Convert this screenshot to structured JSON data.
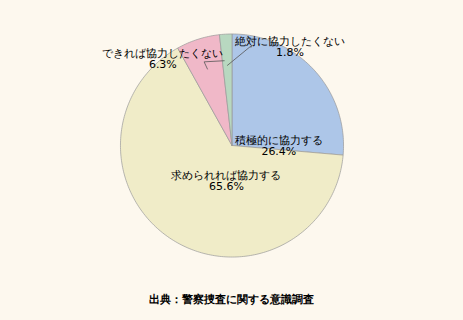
{
  "chart_data": {
    "type": "pie",
    "categories": [
      "積極的に協力する",
      "求められれば協力する",
      "できれば協力したくない",
      "絶対に協力したくない"
    ],
    "values": [
      26.4,
      65.6,
      6.3,
      1.8
    ],
    "value_labels": [
      "26.4%",
      "65.6%",
      "6.3%",
      "1.8%"
    ],
    "colors": [
      "#adc6e8",
      "#f0ecc8",
      "#f0b8c8",
      "#b8d8c0"
    ],
    "data_labels": true,
    "caption": "出典：警察捜査に関する意識調査"
  }
}
